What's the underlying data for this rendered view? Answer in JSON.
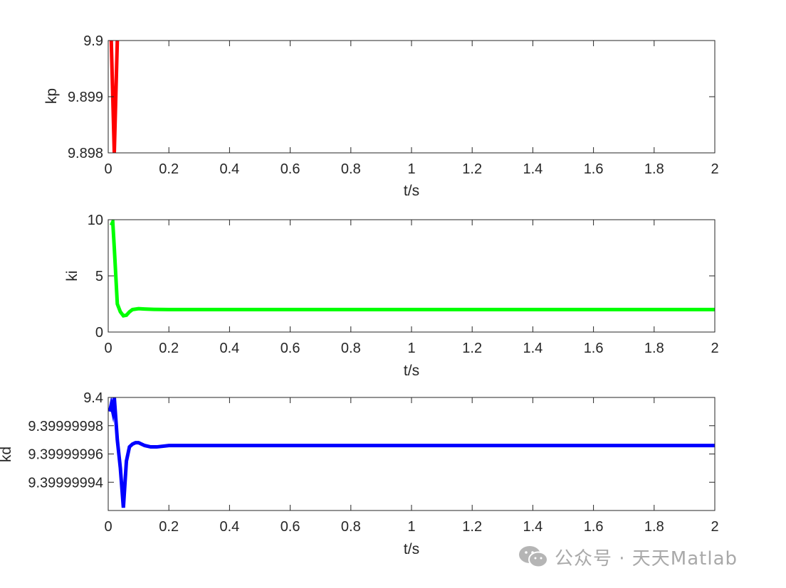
{
  "chart_data": [
    {
      "type": "line",
      "ylabel": "kp",
      "xlabel": "t/s",
      "color": "#ff0000",
      "xlim": [
        0,
        2
      ],
      "ylim": [
        9.898,
        9.9
      ],
      "xticks": [
        0,
        0.2,
        0.4,
        0.6,
        0.8,
        1,
        1.2,
        1.4,
        1.6,
        1.8,
        2
      ],
      "xtick_labels": [
        "0",
        "0.2",
        "0.4",
        "0.6",
        "0.8",
        "1",
        "1.2",
        "1.4",
        "1.6",
        "1.8",
        "2"
      ],
      "yticks": [
        9.898,
        9.899,
        9.9
      ],
      "ytick_labels": [
        "9.898",
        "9.899",
        "9.9"
      ],
      "grid": false,
      "series": [
        {
          "x": [
            0.005,
            0.01,
            0.015,
            0.02,
            0.025,
            0.03,
            0.035
          ],
          "y": [
            9.9,
            9.9,
            9.899,
            9.898,
            9.899,
            9.9,
            9.9
          ]
        }
      ]
    },
    {
      "type": "line",
      "ylabel": "ki",
      "xlabel": "t/s",
      "color": "#00ff00",
      "xlim": [
        0,
        2
      ],
      "ylim": [
        0,
        10
      ],
      "xticks": [
        0,
        0.2,
        0.4,
        0.6,
        0.8,
        1,
        1.2,
        1.4,
        1.6,
        1.8,
        2
      ],
      "xtick_labels": [
        "0",
        "0.2",
        "0.4",
        "0.6",
        "0.8",
        "1",
        "1.2",
        "1.4",
        "1.6",
        "1.8",
        "2"
      ],
      "yticks": [
        0,
        5,
        10
      ],
      "ytick_labels": [
        "0",
        "5",
        "10"
      ],
      "grid": false,
      "series": [
        {
          "x": [
            0.01,
            0.015,
            0.02,
            0.03,
            0.04,
            0.05,
            0.06,
            0.07,
            0.08,
            0.1,
            0.12,
            0.15,
            0.2,
            0.3,
            0.5,
            1,
            2
          ],
          "y": [
            9.5,
            9.8,
            7.5,
            2.5,
            1.8,
            1.45,
            1.5,
            1.8,
            2.0,
            2.08,
            2.05,
            2.02,
            2.0,
            2.0,
            2.0,
            2.0,
            2.0
          ]
        }
      ]
    },
    {
      "type": "line",
      "ylabel": "kd",
      "xlabel": "t/s",
      "color": "#0000ff",
      "xlim": [
        0,
        2
      ],
      "ylim": [
        9.39999992,
        9.4
      ],
      "xticks": [
        0,
        0.2,
        0.4,
        0.6,
        0.8,
        1,
        1.2,
        1.4,
        1.6,
        1.8,
        2
      ],
      "xtick_labels": [
        "0",
        "0.2",
        "0.4",
        "0.6",
        "0.8",
        "1",
        "1.2",
        "1.4",
        "1.6",
        "1.8",
        "2"
      ],
      "yticks": [
        9.39999994,
        9.39999996,
        9.39999998,
        9.4
      ],
      "ytick_labels": [
        "9.39999994",
        "9.39999996",
        "9.39999998",
        "9.4"
      ],
      "grid": false,
      "series": [
        {
          "x": [
            0.005,
            0.01,
            0.015,
            0.02,
            0.025,
            0.03,
            0.04,
            0.05,
            0.06,
            0.07,
            0.08,
            0.09,
            0.1,
            0.12,
            0.14,
            0.16,
            0.2,
            0.3,
            0.5,
            1,
            2
          ],
          "y": [
            9.39999999,
            9.399999995,
            9.39999999,
            9.4,
            9.399999985,
            9.39999997,
            9.39999995,
            9.399999922,
            9.399999955,
            9.399999965,
            9.399999967,
            9.399999968,
            9.399999968,
            9.399999966,
            9.399999965,
            9.399999965,
            9.399999966,
            9.399999966,
            9.399999966,
            9.399999966,
            9.399999966
          ]
        }
      ]
    }
  ],
  "watermark": {
    "text": "公众号 · 天天Matlab",
    "icon": "wechat-icon"
  }
}
